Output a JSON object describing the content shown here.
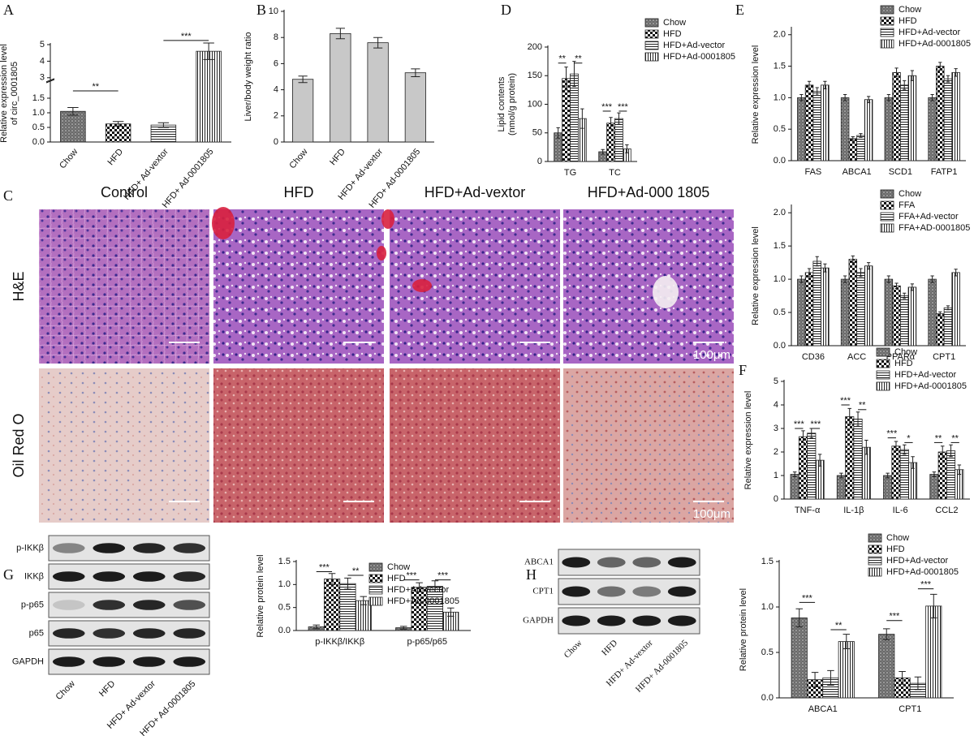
{
  "panels": [
    "A",
    "B",
    "C",
    "D",
    "E",
    "F",
    "G",
    "H"
  ],
  "histology": {
    "columns": [
      "Control",
      "HFD",
      "HFD+Ad-vextor",
      "HFD+Ad-000 1805"
    ],
    "rows": [
      "H&E",
      "Oil Red O"
    ],
    "scale_bar": "100μm"
  },
  "blot_g": {
    "rows": [
      "p-IKKβ",
      "IKKβ",
      "p-p65",
      "p65",
      "GAPDH"
    ],
    "lanes": [
      "Chow",
      "HFD",
      "HFD+ Ad-vextor",
      "HFD+ Ad-0001805"
    ]
  },
  "blot_h": {
    "rows": [
      "ABCA1",
      "CPT1",
      "GAPDH"
    ],
    "lanes": [
      "Chow",
      "HFD",
      "HFD+ Ad-vextor",
      "HFD+ Ad-0001805"
    ]
  },
  "chart_data": [
    {
      "type": "bar",
      "y_label": [
        "Relative expression level",
        "of circ_0001805"
      ],
      "categories": [
        "Chow",
        "HFD",
        "HFD+ Ad-vextor",
        "HFD+ Ad-0001805"
      ],
      "values": [
        1.05,
        0.62,
        0.58,
        4.6
      ],
      "errors": [
        0.13,
        0.08,
        0.08,
        0.5
      ],
      "patterns": [
        "dots",
        "checker",
        "hlines",
        "vlines"
      ],
      "ylim": [
        0,
        5
      ],
      "y_break": [
        2,
        3
      ],
      "yticks": [
        {
          "value": 0,
          "label": "0.0"
        },
        {
          "value": 0.5,
          "label": "0.5"
        },
        {
          "value": 1,
          "label": "1.0"
        },
        {
          "value": 1.5,
          "label": "1.5"
        },
        3,
        4,
        5
      ],
      "annotations": [
        "**",
        "***"
      ]
    },
    {
      "type": "bar",
      "y_label": [
        "Liver/body weight ratio"
      ],
      "categories": [
        "Chow",
        "HFD",
        "HFD+ Ad-vextor",
        "HFD+ Ad-0001805"
      ],
      "values": [
        4.8,
        8.3,
        7.6,
        5.3
      ],
      "errors": [
        0.25,
        0.4,
        0.4,
        0.3
      ],
      "color": "#c8c8c8",
      "ylim": [
        0,
        10
      ],
      "yticks": [
        0,
        2,
        4,
        6,
        8,
        10
      ]
    },
    {
      "type": "bar",
      "y_label": [
        "Lipid contents",
        "(nmol/g protein)"
      ],
      "categories": [
        "TG",
        "TC"
      ],
      "series": [
        {
          "name": "Chow",
          "pattern": "dots",
          "values": [
            50,
            17
          ],
          "errors": [
            9,
            4
          ]
        },
        {
          "name": "HFD",
          "pattern": "checker",
          "values": [
            145,
            67
          ],
          "errors": [
            20,
            10
          ]
        },
        {
          "name": "HFD+Ad-vector",
          "pattern": "hlines",
          "values": [
            153,
            75
          ],
          "errors": [
            22,
            10
          ]
        },
        {
          "name": "HFD+Ad-0001805",
          "pattern": "vlines",
          "values": [
            75,
            22
          ],
          "errors": [
            17,
            7
          ]
        }
      ],
      "ylim": [
        0,
        200
      ],
      "yticks": [
        0,
        50,
        100,
        150,
        200
      ],
      "annotations": [
        "**",
        "**",
        "***",
        "***"
      ]
    },
    {
      "type": "bar",
      "y_label": [
        "Relative expression level"
      ],
      "categories": [
        "FAS",
        "ABCA1",
        "SCD1",
        "FATP1"
      ],
      "series": [
        {
          "name": "Chow",
          "pattern": "dots",
          "values": [
            1.0,
            1.0,
            1.0,
            1.0
          ],
          "errors": [
            0.05,
            0.05,
            0.05,
            0.05
          ]
        },
        {
          "name": "HFD",
          "pattern": "checker",
          "values": [
            1.2,
            0.35,
            1.4,
            1.5
          ],
          "errors": [
            0.06,
            0.03,
            0.07,
            0.06
          ]
        },
        {
          "name": "HFD+Ad-vector",
          "pattern": "hlines",
          "values": [
            1.1,
            0.4,
            1.2,
            1.3
          ],
          "errors": [
            0.06,
            0.03,
            0.07,
            0.05
          ]
        },
        {
          "name": "HFD+Ad-0001805",
          "pattern": "vlines",
          "values": [
            1.2,
            0.97,
            1.35,
            1.4
          ],
          "errors": [
            0.06,
            0.05,
            0.08,
            0.06
          ]
        }
      ],
      "ylim": [
        0,
        2.1
      ],
      "yticks": [
        {
          "value": 0,
          "label": "0.0"
        },
        {
          "value": 0.5,
          "label": "0.5"
        },
        {
          "value": 1,
          "label": "1.0"
        },
        {
          "value": 1.5,
          "label": "1.5"
        },
        {
          "value": 2,
          "label": "2.0"
        }
      ]
    },
    {
      "type": "bar",
      "y_label": [
        "Relative expression level"
      ],
      "categories": [
        "CD36",
        "ACC",
        "PPARα",
        "CPT1"
      ],
      "series": [
        {
          "name": "Chow",
          "pattern": "dots",
          "values": [
            1.0,
            1.0,
            1.0,
            1.0
          ],
          "errors": [
            0.05,
            0.05,
            0.05,
            0.05
          ]
        },
        {
          "name": "FFA",
          "pattern": "checker",
          "values": [
            1.1,
            1.3,
            0.9,
            0.48
          ],
          "errors": [
            0.06,
            0.05,
            0.04,
            0.03
          ]
        },
        {
          "name": "FFA+Ad-vector",
          "pattern": "hlines",
          "values": [
            1.27,
            1.1,
            0.75,
            0.57
          ],
          "errors": [
            0.07,
            0.06,
            0.04,
            0.03
          ]
        },
        {
          "name": "FFA+AD-0001805",
          "pattern": "vlines",
          "values": [
            1.17,
            1.2,
            0.88,
            1.1
          ],
          "errors": [
            0.06,
            0.05,
            0.05,
            0.05
          ]
        }
      ],
      "ylim": [
        0,
        2.1
      ],
      "yticks": [
        {
          "value": 0,
          "label": "0.0"
        },
        {
          "value": 0.5,
          "label": "0.5"
        },
        {
          "value": 1,
          "label": "1.0"
        },
        {
          "value": 1.5,
          "label": "1.5"
        },
        {
          "value": 2,
          "label": "2.0"
        }
      ]
    },
    {
      "type": "bar",
      "y_label": [
        "Relative expression level"
      ],
      "categories": [
        "TNF-α",
        "IL-1β",
        "IL-6",
        "CCL2"
      ],
      "series": [
        {
          "name": "Chow",
          "pattern": "dots",
          "values": [
            1.05,
            1.0,
            1.0,
            1.05
          ],
          "errors": [
            0.1,
            0.1,
            0.1,
            0.1
          ]
        },
        {
          "name": "HFD",
          "pattern": "checker",
          "values": [
            2.65,
            3.5,
            2.25,
            2.0
          ],
          "errors": [
            0.25,
            0.35,
            0.2,
            0.25
          ]
        },
        {
          "name": "HFD+Ad-vector",
          "pattern": "hlines",
          "values": [
            2.8,
            3.4,
            2.1,
            2.05
          ],
          "errors": [
            0.2,
            0.3,
            0.2,
            0.25
          ]
        },
        {
          "name": "HFD+Ad-0001805",
          "pattern": "vlines",
          "values": [
            1.65,
            2.2,
            1.55,
            1.25
          ],
          "errors": [
            0.25,
            0.3,
            0.25,
            0.2
          ]
        }
      ],
      "ylim": [
        0,
        5
      ],
      "yticks": [
        0,
        1,
        2,
        3,
        4,
        5
      ],
      "annotations": [
        "***",
        "***",
        "***",
        "**",
        "***",
        "*",
        "**",
        "**"
      ]
    },
    {
      "type": "bar",
      "y_label": [
        "Relative protein level"
      ],
      "categories": [
        "p-IKKβ/IKKβ",
        "p-p65/p65"
      ],
      "series": [
        {
          "name": "Chow",
          "pattern": "dots",
          "values": [
            0.08,
            0.06
          ],
          "errors": [
            0.04,
            0.03
          ]
        },
        {
          "name": "HFD",
          "pattern": "checker",
          "values": [
            1.12,
            0.94
          ],
          "errors": [
            0.12,
            0.1
          ]
        },
        {
          "name": "HFD+Ad-vector",
          "pattern": "hlines",
          "values": [
            1.02,
            0.96
          ],
          "errors": [
            0.12,
            0.12
          ]
        },
        {
          "name": "HFD+Ad-0001805",
          "pattern": "vlines",
          "values": [
            0.65,
            0.4
          ],
          "errors": [
            0.09,
            0.09
          ]
        }
      ],
      "ylim": [
        0,
        1.5
      ],
      "yticks": [
        {
          "value": 0,
          "label": "0.0"
        },
        {
          "value": 0.5,
          "label": "0.5"
        },
        {
          "value": 1,
          "label": "1.0"
        },
        {
          "value": 1.5,
          "label": "1.5"
        }
      ],
      "annotations": [
        "***",
        "**",
        "***",
        "***"
      ]
    },
    {
      "type": "bar",
      "y_label": [
        "Relative protein level"
      ],
      "categories": [
        "ABCA1",
        "CPT1"
      ],
      "series": [
        {
          "name": "Chow",
          "pattern": "dots",
          "values": [
            0.88,
            0.7
          ],
          "errors": [
            0.1,
            0.06
          ]
        },
        {
          "name": "HFD",
          "pattern": "checker",
          "values": [
            0.2,
            0.22
          ],
          "errors": [
            0.08,
            0.07
          ]
        },
        {
          "name": "HFD+Ad-vector",
          "pattern": "hlines",
          "values": [
            0.22,
            0.16
          ],
          "errors": [
            0.08,
            0.07
          ]
        },
        {
          "name": "HFD+Ad-0001805",
          "pattern": "vlines",
          "values": [
            0.62,
            1.01
          ],
          "errors": [
            0.08,
            0.13
          ]
        }
      ],
      "ylim": [
        0,
        1.5
      ],
      "yticks": [
        {
          "value": 0,
          "label": "0.0"
        },
        {
          "value": 0.5,
          "label": "0.5"
        },
        {
          "value": 1,
          "label": "1.0"
        },
        {
          "value": 1.5,
          "label": "1.5"
        }
      ],
      "annotations": [
        "***",
        "**",
        "***",
        "***"
      ]
    }
  ]
}
